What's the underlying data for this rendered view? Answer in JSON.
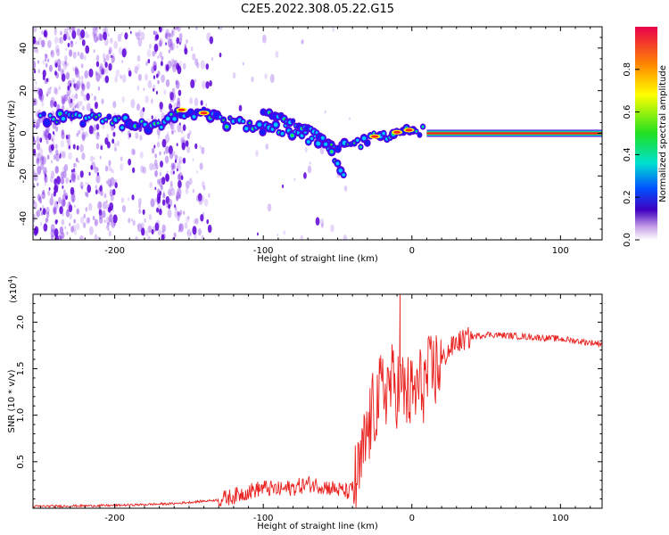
{
  "title": "C2E5.2022.308.05.22.G15",
  "colors": {
    "snr_line": "#e8201e",
    "track": [
      "#5a00d8",
      "#1a1aff",
      "#00c8ff",
      "#30e030",
      "#ff2020",
      "#ffff00"
    ],
    "noise": "#8a40e8",
    "colorbar": [
      "#e8004a",
      "#ff8a00",
      "#ffff00",
      "#20e020",
      "#00e0d0",
      "#0050ff",
      "#4000c0",
      "#c8a0e8",
      "#ffffff"
    ]
  },
  "chart_data": [
    {
      "type": "heatmap",
      "xlabel": "Height of straight line (km)",
      "ylabel": "Frequency (Hz)",
      "xlim": [
        -255,
        128
      ],
      "ylim": [
        -50,
        50
      ],
      "x_ticks": [
        -200,
        -100,
        0,
        100
      ],
      "x_tick_labels": [
        "-200",
        "-100",
        "0",
        "100"
      ],
      "y_ticks": [
        -40,
        -20,
        0,
        20,
        40
      ],
      "y_tick_labels": [
        "-40",
        "-20",
        "0",
        "20",
        "40"
      ],
      "colorbar": {
        "label": "Normalized spectral amplitude",
        "range": [
          0,
          1
        ],
        "ticks": [
          0.0,
          0.2,
          0.4,
          0.6,
          0.8
        ],
        "tick_labels": [
          "0.0",
          "0.2",
          "0.4",
          "0.6",
          "0.8"
        ]
      },
      "main_track": [
        [
          -250,
          7
        ],
        [
          -230,
          7.5
        ],
        [
          -210,
          6
        ],
        [
          -195,
          5
        ],
        [
          -180,
          4
        ],
        [
          -170,
          4.5
        ],
        [
          -160,
          9
        ],
        [
          -150,
          10.5
        ],
        [
          -140,
          9
        ],
        [
          -130,
          6
        ],
        [
          -120,
          5
        ],
        [
          -110,
          4
        ],
        [
          -100,
          2.5
        ],
        [
          -90,
          3
        ],
        [
          -80,
          0
        ],
        [
          -70,
          -2
        ],
        [
          -60,
          -4
        ],
        [
          -50,
          -5
        ],
        [
          -40,
          -6
        ],
        [
          -30,
          -3
        ],
        [
          -20,
          -1
        ],
        [
          -10,
          0
        ],
        [
          0,
          1.5
        ],
        [
          10,
          0.5
        ],
        [
          128,
          0
        ]
      ],
      "branch_track": [
        [
          -100,
          10
        ],
        [
          -90,
          8
        ],
        [
          -80,
          5
        ],
        [
          -70,
          2
        ],
        [
          -60,
          -2
        ],
        [
          -55,
          -8
        ],
        [
          -50,
          -15
        ],
        [
          -45,
          -20
        ]
      ],
      "steady_line": {
        "x_start": 10,
        "x_end": 128,
        "frequency": 0
      }
    },
    {
      "type": "line",
      "xlabel": "Height of straight line (km)",
      "ylabel": "SNR (10 * v/v)",
      "y_multiplier": "(x10",
      "y_multiplier_exp": "4",
      "y_multiplier_close": ")",
      "xlim": [
        -255,
        128
      ],
      "ylim": [
        0,
        2.3
      ],
      "x_ticks": [
        -200,
        -100,
        0,
        100
      ],
      "x_tick_labels": [
        "-200",
        "-100",
        "0",
        "100"
      ],
      "y_ticks": [
        0.5,
        1.0,
        1.5,
        2.0
      ],
      "y_tick_labels": [
        "0.5",
        "1.0",
        "1.5",
        "2.0"
      ],
      "series": [
        {
          "points": [
            [
              -255,
              0.02
            ],
            [
              -200,
              0.03
            ],
            [
              -160,
              0.05
            ],
            [
              -145,
              0.07
            ],
            [
              -130,
              0.09
            ],
            [
              -120,
              0.13
            ],
            [
              -110,
              0.18
            ],
            [
              -100,
              0.22
            ],
            [
              -90,
              0.2
            ],
            [
              -80,
              0.22
            ],
            [
              -70,
              0.26
            ],
            [
              -60,
              0.24
            ],
            [
              -50,
              0.2
            ],
            [
              -42,
              0.17
            ],
            [
              -36,
              0.32
            ],
            [
              -30,
              0.8
            ],
            [
              -25,
              1.1
            ],
            [
              -20,
              1.25
            ],
            [
              -15,
              1.35
            ],
            [
              -10,
              1.3
            ],
            [
              -5,
              1.25
            ],
            [
              0,
              1.2
            ],
            [
              5,
              1.3
            ],
            [
              10,
              1.38
            ],
            [
              15,
              1.48
            ],
            [
              20,
              1.58
            ],
            [
              25,
              1.7
            ],
            [
              30,
              1.78
            ],
            [
              40,
              1.84
            ],
            [
              50,
              1.87
            ],
            [
              60,
              1.86
            ],
            [
              70,
              1.85
            ],
            [
              80,
              1.84
            ],
            [
              90,
              1.83
            ],
            [
              100,
              1.82
            ],
            [
              110,
              1.8
            ],
            [
              120,
              1.78
            ],
            [
              128,
              1.77
            ]
          ],
          "peak": [
            -8,
            2.3
          ]
        }
      ]
    }
  ]
}
